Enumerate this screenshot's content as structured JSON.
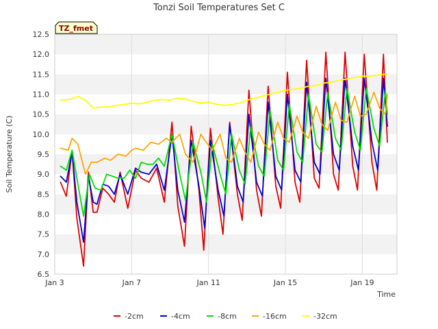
{
  "chart_data": {
    "type": "line",
    "title": "Tonzi Soil Temperatures Set C",
    "xlabel": "Time",
    "ylabel": "Soil Temperature (C)",
    "badge": "TZ_fmet",
    "xlim": [
      3,
      20.8
    ],
    "ylim": [
      6.5,
      12.5
    ],
    "x_ticks": [
      {
        "value": 3,
        "label": "Jan 3"
      },
      {
        "value": 7,
        "label": "Jan 7"
      },
      {
        "value": 11,
        "label": "Jan 11"
      },
      {
        "value": 15,
        "label": "Jan 15"
      },
      {
        "value": 19,
        "label": "Jan 19"
      }
    ],
    "y_ticks": [
      "6.5",
      "7.0",
      "7.5",
      "8.0",
      "8.5",
      "9.0",
      "9.5",
      "10.0",
      "10.5",
      "11.0",
      "11.5",
      "12.0",
      "12.5"
    ],
    "grid": true,
    "legend_position": "bottom",
    "series": [
      {
        "name": "-2cm",
        "color": "#dd0000",
        "x": [
          3.3,
          3.6,
          3.9,
          4.15,
          4.5,
          4.75,
          5.0,
          5.2,
          5.5,
          5.8,
          6.1,
          6.4,
          6.8,
          7.2,
          7.5,
          7.9,
          8.3,
          8.7,
          9.1,
          9.4,
          9.75,
          10.1,
          10.5,
          10.75,
          11.1,
          11.5,
          11.75,
          12.1,
          12.5,
          12.75,
          13.1,
          13.5,
          13.75,
          14.1,
          14.5,
          14.75,
          15.1,
          15.5,
          15.75,
          16.1,
          16.5,
          16.75,
          17.1,
          17.5,
          17.75,
          18.1,
          18.5,
          18.75,
          19.1,
          19.5,
          19.75,
          20.1,
          20.3
        ],
        "y": [
          8.8,
          8.45,
          9.6,
          7.9,
          6.7,
          9.05,
          8.05,
          8.05,
          8.65,
          8.5,
          8.3,
          9.05,
          8.15,
          9.1,
          8.9,
          8.8,
          9.15,
          8.3,
          10.3,
          8.2,
          7.2,
          10.2,
          8.6,
          7.1,
          10.15,
          8.4,
          7.5,
          10.3,
          8.5,
          7.85,
          11.1,
          8.6,
          7.95,
          11.2,
          8.7,
          8.15,
          11.55,
          8.8,
          8.3,
          11.85,
          8.9,
          8.65,
          12.05,
          9.0,
          8.6,
          12.05,
          9.2,
          8.6,
          12.0,
          9.3,
          8.6,
          12.0,
          9.8
        ]
      },
      {
        "name": "-4cm",
        "color": "#0000cc",
        "x": [
          3.3,
          3.6,
          3.9,
          4.15,
          4.5,
          4.75,
          5.0,
          5.2,
          5.5,
          5.8,
          6.1,
          6.4,
          6.8,
          7.2,
          7.5,
          7.9,
          8.3,
          8.7,
          9.1,
          9.4,
          9.75,
          10.1,
          10.5,
          10.8,
          11.1,
          11.5,
          11.8,
          12.1,
          12.5,
          12.8,
          13.1,
          13.5,
          13.8,
          14.1,
          14.5,
          14.8,
          15.1,
          15.5,
          15.8,
          16.1,
          16.5,
          16.8,
          17.1,
          17.5,
          17.8,
          18.1,
          18.5,
          18.8,
          19.1,
          19.5,
          19.8,
          20.1,
          20.3
        ],
        "y": [
          8.95,
          8.8,
          9.55,
          8.3,
          7.3,
          8.95,
          8.3,
          8.25,
          8.75,
          8.7,
          8.5,
          9.0,
          8.5,
          9.15,
          9.05,
          9.0,
          9.25,
          8.6,
          10.0,
          8.6,
          7.8,
          9.85,
          8.7,
          7.65,
          9.85,
          8.6,
          7.95,
          10.25,
          8.7,
          8.3,
          10.5,
          8.8,
          8.45,
          10.8,
          8.95,
          8.6,
          11.0,
          9.1,
          8.8,
          11.3,
          9.3,
          9.0,
          11.4,
          9.5,
          9.1,
          11.4,
          9.7,
          9.1,
          11.4,
          9.8,
          9.1,
          11.4,
          10.2
        ]
      },
      {
        "name": "-8cm",
        "color": "#00dd00",
        "x": [
          3.3,
          3.6,
          3.9,
          4.15,
          4.5,
          4.8,
          5.1,
          5.4,
          5.7,
          6.0,
          6.3,
          6.6,
          6.9,
          7.2,
          7.5,
          7.8,
          8.1,
          8.4,
          8.7,
          9.1,
          9.5,
          9.8,
          10.2,
          10.6,
          10.9,
          11.2,
          11.6,
          11.9,
          12.2,
          12.6,
          12.9,
          13.2,
          13.6,
          13.9,
          14.2,
          14.6,
          14.9,
          15.2,
          15.6,
          15.9,
          16.2,
          16.6,
          16.9,
          17.2,
          17.6,
          17.9,
          18.2,
          18.6,
          18.9,
          19.2,
          19.6,
          19.9,
          20.2,
          20.3
        ],
        "y": [
          9.2,
          9.1,
          9.6,
          8.9,
          7.95,
          9.0,
          8.65,
          8.6,
          9.0,
          8.95,
          8.9,
          8.9,
          9.1,
          8.9,
          9.3,
          9.25,
          9.25,
          9.4,
          9.2,
          10.0,
          9.0,
          8.35,
          9.8,
          9.05,
          8.3,
          9.75,
          9.0,
          8.5,
          10.0,
          9.1,
          8.75,
          10.2,
          9.2,
          8.95,
          10.6,
          9.35,
          9.1,
          10.75,
          9.55,
          9.3,
          11.0,
          9.75,
          9.55,
          11.05,
          9.9,
          9.6,
          11.15,
          10.05,
          9.6,
          11.15,
          10.15,
          9.7,
          11.1,
          10.5
        ]
      },
      {
        "name": "-16cm",
        "color": "#ffa500",
        "x": [
          3.3,
          3.7,
          3.9,
          4.2,
          4.6,
          4.9,
          5.2,
          5.6,
          5.9,
          6.3,
          6.7,
          7.0,
          7.2,
          7.6,
          8.0,
          8.4,
          8.8,
          9.1,
          9.5,
          9.8,
          10.2,
          10.6,
          10.8,
          11.2,
          11.6,
          11.9,
          12.2,
          12.6,
          12.9,
          13.2,
          13.6,
          13.9,
          14.2,
          14.6,
          14.9,
          15.2,
          15.6,
          15.9,
          16.2,
          16.6,
          16.9,
          17.2,
          17.6,
          17.9,
          18.2,
          18.6,
          18.9,
          19.2,
          19.6,
          19.9,
          20.2,
          20.3
        ],
        "y": [
          9.65,
          9.6,
          9.9,
          9.75,
          9.0,
          9.3,
          9.3,
          9.4,
          9.35,
          9.5,
          9.45,
          9.6,
          9.65,
          9.6,
          9.8,
          9.75,
          9.9,
          9.8,
          10.0,
          9.5,
          9.3,
          10.0,
          9.85,
          9.6,
          10.0,
          9.4,
          9.3,
          9.9,
          9.55,
          9.3,
          10.05,
          9.75,
          9.6,
          10.3,
          9.9,
          9.8,
          10.45,
          10.05,
          9.9,
          10.7,
          10.25,
          10.1,
          10.8,
          10.35,
          10.3,
          10.95,
          10.45,
          10.5,
          11.05,
          10.65,
          10.5,
          11.0
        ]
      },
      {
        "name": "-32cm",
        "color": "#ffff00",
        "x": [
          3.3,
          3.8,
          4.2,
          4.6,
          5.0,
          5.4,
          5.8,
          6.2,
          6.6,
          7.0,
          7.4,
          7.8,
          8.2,
          8.6,
          9.0,
          9.4,
          9.8,
          10.2,
          10.6,
          11.0,
          11.4,
          11.8,
          12.2,
          12.6,
          13.0,
          13.4,
          13.8,
          14.2,
          14.6,
          15.0,
          15.4,
          15.8,
          16.2,
          16.6,
          17.0,
          17.4,
          17.8,
          18.2,
          18.6,
          19.0,
          19.4,
          19.8,
          20.2,
          20.3
        ],
        "y": [
          10.85,
          10.87,
          10.95,
          10.85,
          10.65,
          10.68,
          10.68,
          10.72,
          10.74,
          10.78,
          10.76,
          10.8,
          10.85,
          10.87,
          10.85,
          10.9,
          10.88,
          10.82,
          10.78,
          10.8,
          10.75,
          10.72,
          10.74,
          10.78,
          10.85,
          10.9,
          10.95,
          11.0,
          11.05,
          11.1,
          11.12,
          11.15,
          11.2,
          11.22,
          11.28,
          11.3,
          11.35,
          11.38,
          11.42,
          11.45,
          11.45,
          11.48,
          11.5,
          11.5
        ]
      }
    ]
  }
}
